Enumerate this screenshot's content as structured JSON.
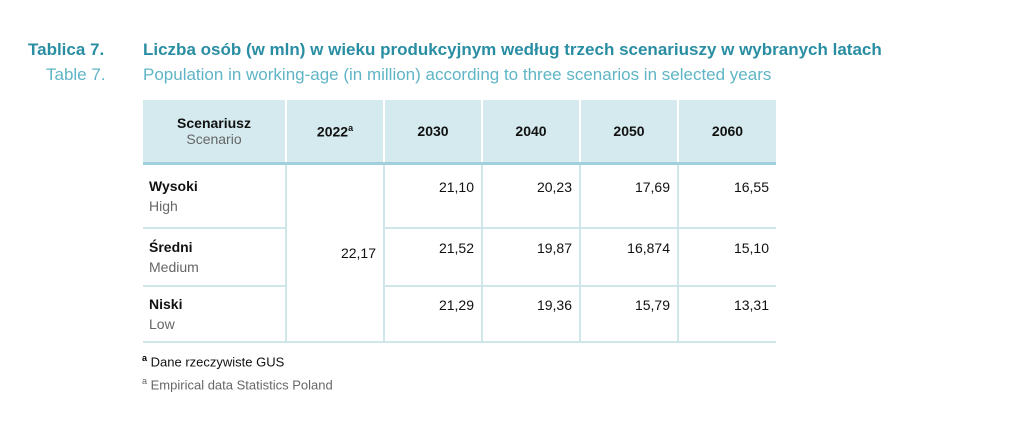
{
  "title": {
    "label_pl": "Tablica 7.",
    "text_pl": "Liczba osób (w mln) w wieku produkcyjnym według trzech scenariuszy w wybranych latach",
    "label_en": "Table 7.",
    "text_en": "Population in working-age (in million) according to three scenarios in selected years"
  },
  "table": {
    "header": {
      "scenario_pl": "Scenariusz",
      "scenario_en": "Scenario",
      "years": [
        "2022",
        "2030",
        "2040",
        "2050",
        "2060"
      ],
      "note": "a"
    },
    "base_value": "22,17",
    "rows": [
      {
        "pl": "Wysoki",
        "en": "High",
        "values": [
          "21,10",
          "20,23",
          "17,69",
          "16,55"
        ]
      },
      {
        "pl": "Średni",
        "en": "Medium",
        "values": [
          "21,52",
          "19,87",
          "16,874",
          "15,10"
        ]
      },
      {
        "pl": "Niski",
        "en": "Low",
        "values": [
          "21,29",
          "19,36",
          "15,79",
          "13,31"
        ]
      }
    ]
  },
  "footnotes": [
    {
      "marker": "a",
      "text": "Dane rzeczywiste GUS"
    },
    {
      "marker": "a",
      "text": "Empirical data Statistics Poland"
    }
  ]
}
